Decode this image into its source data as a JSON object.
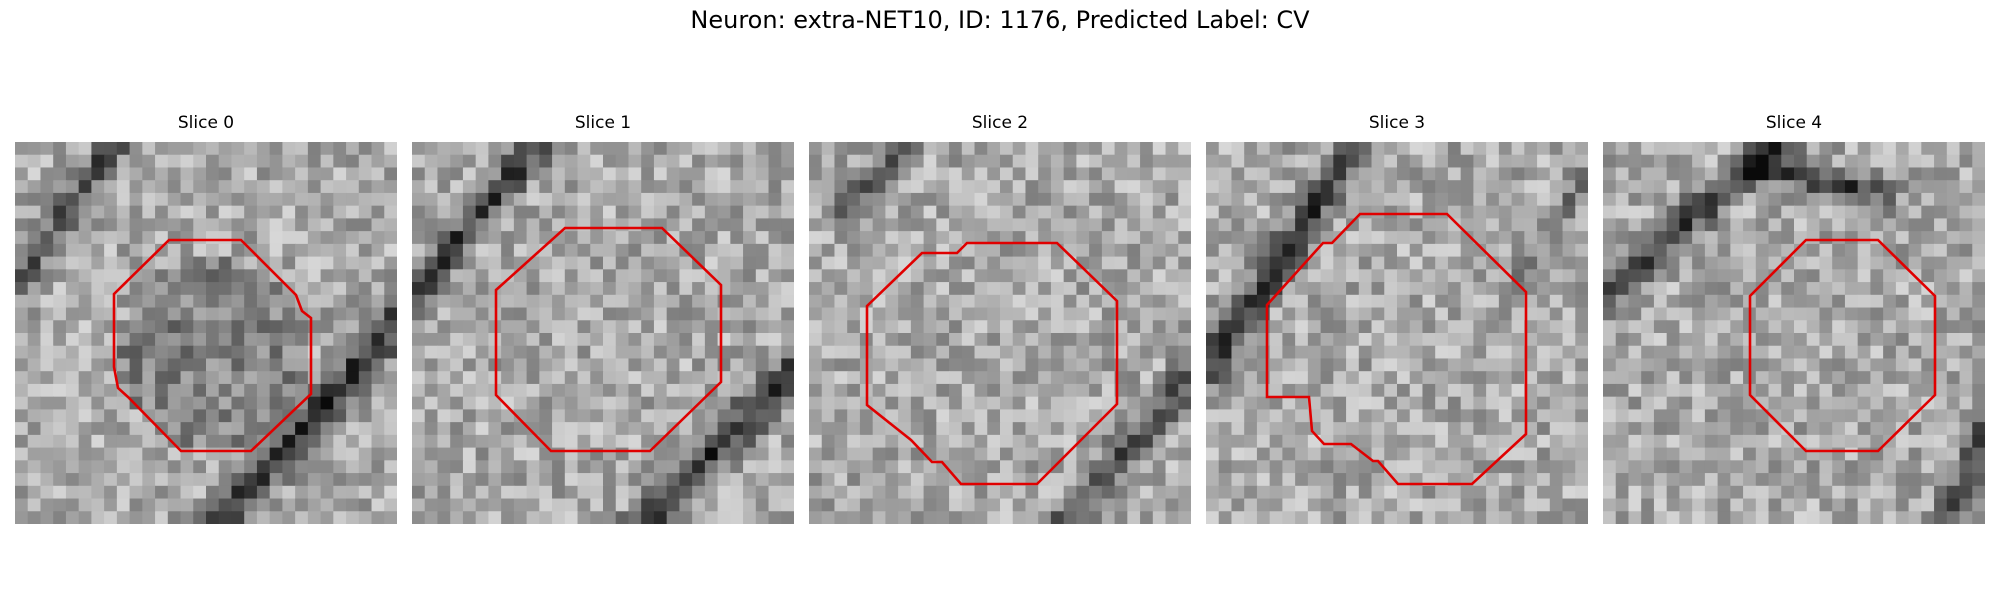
{
  "figure": {
    "title": "Neuron: extra-NET10, ID: 1176, Predicted Label: CV",
    "outline_color": "#e00000",
    "panels": [
      {
        "title": "Slice 0",
        "seed": 11
      },
      {
        "title": "Slice 1",
        "seed": 23
      },
      {
        "title": "Slice 2",
        "seed": 37
      },
      {
        "title": "Slice 3",
        "seed": 41
      },
      {
        "title": "Slice 4",
        "seed": 59
      }
    ]
  }
}
